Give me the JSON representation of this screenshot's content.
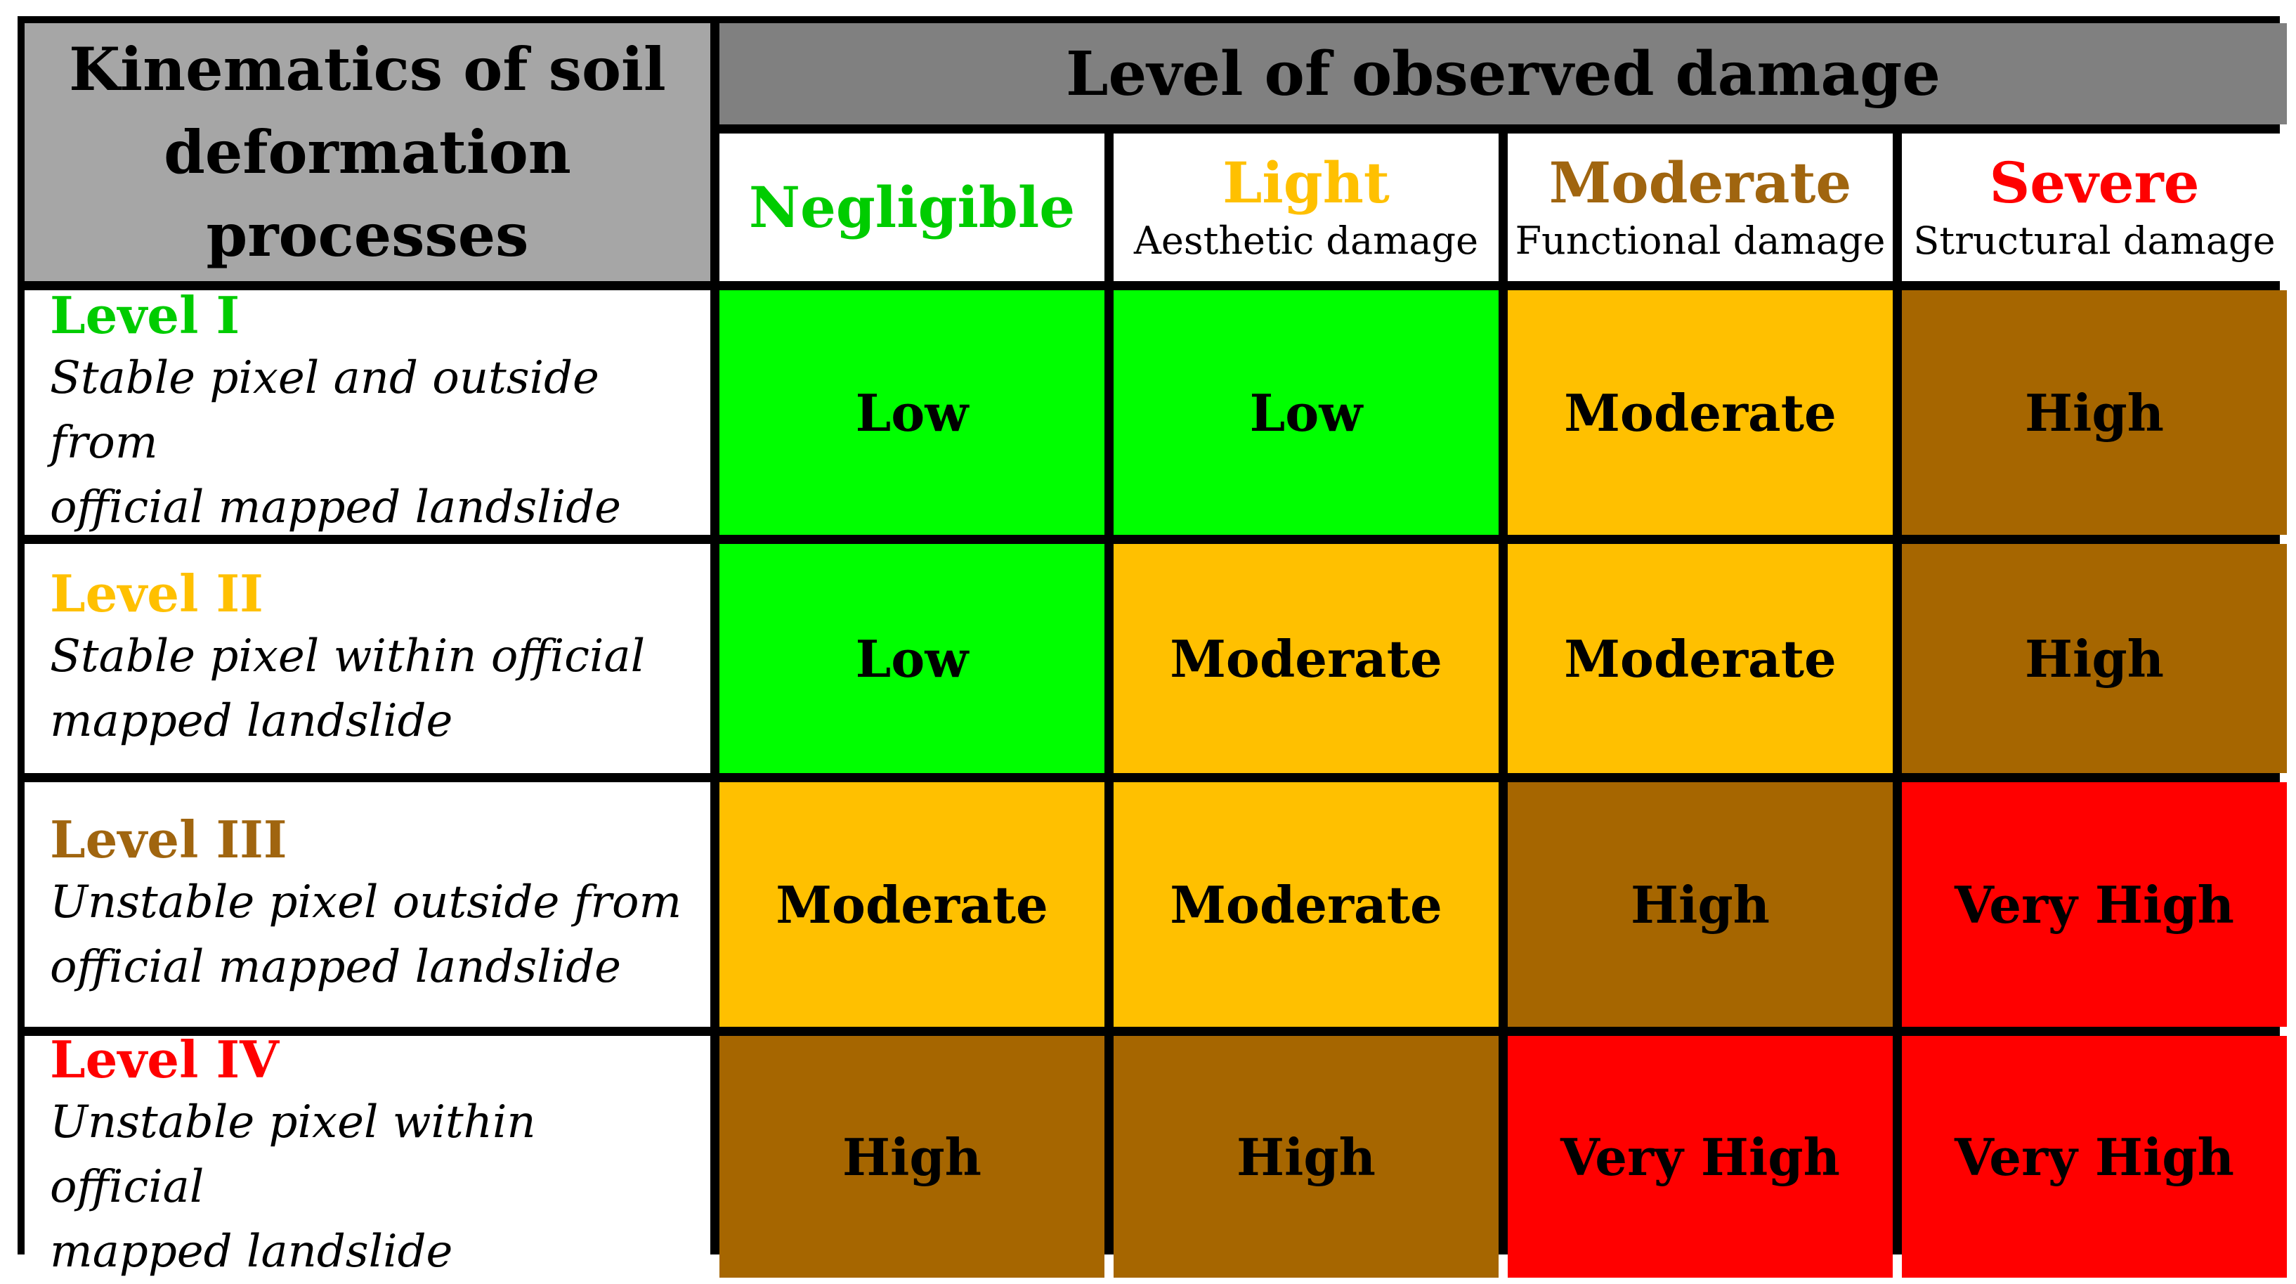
{
  "header": {
    "corner_line1": "Kinematics of soil",
    "corner_line2": "deformation processes",
    "damage_title": "Level of observed damage"
  },
  "columns": [
    {
      "name": "Negligible",
      "subtitle": "",
      "color": "#00cc00"
    },
    {
      "name": "Light",
      "subtitle": "Aesthetic damage",
      "color": "#ffc000"
    },
    {
      "name": "Moderate",
      "subtitle": "Functional damage",
      "color": "#a0650f"
    },
    {
      "name": "Severe",
      "subtitle": "Structural damage",
      "color": "#ff0000"
    }
  ],
  "rows": [
    {
      "level": "Level I",
      "level_color": "#00cc00",
      "desc_line1": "Stable pixel and outside from",
      "desc_line2": "official mapped landslide",
      "cells": [
        "Low",
        "Low",
        "Moderate",
        "High"
      ]
    },
    {
      "level": "Level II",
      "level_color": "#ffc000",
      "desc_line1": "Stable pixel within official",
      "desc_line2": "mapped landslide",
      "cells": [
        "Low",
        "Moderate",
        "Moderate",
        "High"
      ]
    },
    {
      "level": "Level III",
      "level_color": "#a0650f",
      "desc_line1": "Unstable pixel outside from",
      "desc_line2": "official mapped landslide",
      "cells": [
        "Moderate",
        "Moderate",
        "High",
        "Very High"
      ]
    },
    {
      "level": "Level IV",
      "level_color": "#ff0000",
      "desc_line1": "Unstable pixel within official",
      "desc_line2": "mapped landslide",
      "cells": [
        "High",
        "High",
        "Very High",
        "Very High"
      ]
    }
  ],
  "risk_colors": {
    "Low": "#00ff00",
    "Moderate": "#ffc000",
    "High": "#a66600",
    "Very High": "#ff0000"
  }
}
